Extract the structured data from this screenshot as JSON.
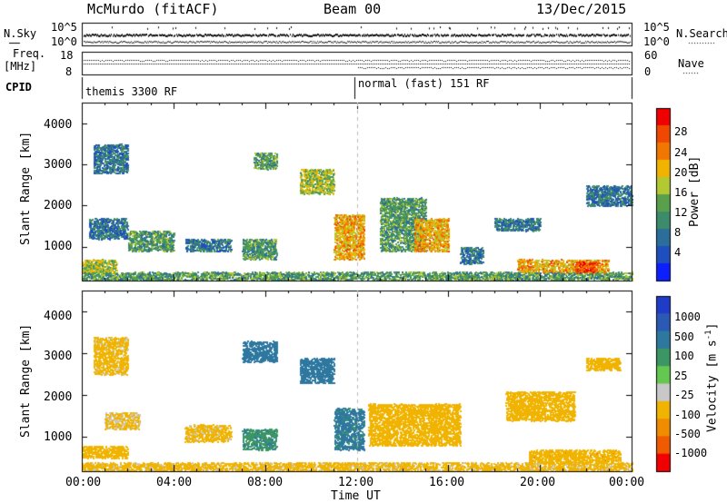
{
  "header": {
    "station": "McMurdo (fitACF)",
    "beam": "Beam 00",
    "date": "13/Dec/2015"
  },
  "status_panels": {
    "nsky_label": "N.Sky",
    "nsky_ticks": [
      "10^5",
      "10^0"
    ],
    "nsearch_label": "N.Search",
    "nsearch_ticks": [
      "10^5",
      "10^0"
    ],
    "freq_label": "Freq.",
    "freq_unit": "[MHz]",
    "freq_ticks": [
      "18",
      "8"
    ],
    "nave_label": "Nave",
    "nave_ticks": [
      "60",
      "0"
    ],
    "cpid_label": "CPID",
    "cpid_segments": [
      "themis 3300 RF",
      "normal (fast) 151 RF"
    ]
  },
  "colors": {
    "power_scale": [
      "#0b1fff",
      "#1f4fbf",
      "#2c6e9a",
      "#3c8c6c",
      "#5aa04c",
      "#b4c832",
      "#f0b400",
      "#f07800",
      "#f04800",
      "#f00000"
    ],
    "velocity_scale": [
      "#1f3cc8",
      "#2a5ab4",
      "#2e78a0",
      "#3c9664",
      "#64c850",
      "#c8c8c8",
      "#f0b400",
      "#f08c00",
      "#f05a00",
      "#f00000"
    ]
  },
  "chart_data": [
    {
      "type": "heatmap",
      "title": "Power",
      "xlabel": "Time UT",
      "ylabel": "Slant Range [km]",
      "x_ticks": [
        "00:00",
        "04:00",
        "08:00",
        "12:00",
        "16:00",
        "20:00",
        "00:00"
      ],
      "x_range_hours": [
        0,
        24
      ],
      "y_ticks": [
        "1000",
        "2000",
        "3000",
        "4000"
      ],
      "ylim": [
        180,
        4500
      ],
      "colorbar": {
        "label": "Power [dB]",
        "ticks": [
          "4",
          "8",
          "12",
          "16",
          "20",
          "24",
          "28"
        ],
        "range": [
          0,
          30
        ]
      },
      "echo_regions": [
        {
          "t_start": 0.0,
          "t_end": 24.0,
          "r_start": 200,
          "r_end": 400,
          "value": 12
        },
        {
          "t_start": 0.0,
          "t_end": 1.5,
          "r_start": 400,
          "r_end": 700,
          "value": 16
        },
        {
          "t_start": 0.3,
          "t_end": 2.0,
          "r_start": 1200,
          "r_end": 1700,
          "value": 8
        },
        {
          "t_start": 0.5,
          "t_end": 2.0,
          "r_start": 2800,
          "r_end": 3500,
          "value": 8
        },
        {
          "t_start": 2.0,
          "t_end": 4.0,
          "r_start": 900,
          "r_end": 1400,
          "value": 12
        },
        {
          "t_start": 4.5,
          "t_end": 6.5,
          "r_start": 900,
          "r_end": 1200,
          "value": 8
        },
        {
          "t_start": 7.0,
          "t_end": 8.5,
          "r_start": 700,
          "r_end": 1200,
          "value": 12
        },
        {
          "t_start": 7.5,
          "t_end": 8.5,
          "r_start": 2900,
          "r_end": 3300,
          "value": 12
        },
        {
          "t_start": 9.5,
          "t_end": 11.0,
          "r_start": 2300,
          "r_end": 2900,
          "value": 16
        },
        {
          "t_start": 11.0,
          "t_end": 12.3,
          "r_start": 700,
          "r_end": 1800,
          "value": 20
        },
        {
          "t_start": 13.0,
          "t_end": 15.0,
          "r_start": 900,
          "r_end": 2200,
          "value": 12
        },
        {
          "t_start": 14.5,
          "t_end": 16.0,
          "r_start": 900,
          "r_end": 1700,
          "value": 20
        },
        {
          "t_start": 16.5,
          "t_end": 17.5,
          "r_start": 600,
          "r_end": 1000,
          "value": 8
        },
        {
          "t_start": 18.0,
          "t_end": 20.0,
          "r_start": 1400,
          "r_end": 1700,
          "value": 8
        },
        {
          "t_start": 19.0,
          "t_end": 23.0,
          "r_start": 400,
          "r_end": 700,
          "value": 20
        },
        {
          "t_start": 21.5,
          "t_end": 22.5,
          "r_start": 400,
          "r_end": 650,
          "value": 26
        },
        {
          "t_start": 22.0,
          "t_end": 24.0,
          "r_start": 2000,
          "r_end": 2500,
          "value": 8
        }
      ]
    },
    {
      "type": "heatmap",
      "title": "Velocity",
      "xlabel": "Time UT",
      "ylabel": "Slant Range [km]",
      "x_ticks": [
        "00:00",
        "04:00",
        "08:00",
        "12:00",
        "16:00",
        "20:00",
        "00:00"
      ],
      "x_range_hours": [
        0,
        24
      ],
      "y_ticks": [
        "1000",
        "2000",
        "3000",
        "4000"
      ],
      "ylim": [
        180,
        4500
      ],
      "colorbar": {
        "label": "Velocity [m s^-1]",
        "ticks": [
          "1000",
          "500",
          "100",
          "25",
          "-25",
          "-100",
          "-500",
          "-1000"
        ]
      },
      "echo_regions": [
        {
          "t_start": 0.0,
          "t_end": 24.0,
          "r_start": 200,
          "r_end": 400,
          "value": -150
        },
        {
          "t_start": 0.0,
          "t_end": 2.0,
          "r_start": 500,
          "r_end": 800,
          "value": -200
        },
        {
          "t_start": 0.5,
          "t_end": 2.0,
          "r_start": 2500,
          "r_end": 3400,
          "value": -150
        },
        {
          "t_start": 1.0,
          "t_end": 2.5,
          "r_start": 1200,
          "r_end": 1600,
          "value": -120
        },
        {
          "t_start": 4.5,
          "t_end": 6.5,
          "r_start": 900,
          "r_end": 1300,
          "value": -150
        },
        {
          "t_start": 7.0,
          "t_end": 8.5,
          "r_start": 700,
          "r_end": 1200,
          "value": 80
        },
        {
          "t_start": 7.0,
          "t_end": 8.5,
          "r_start": 2800,
          "r_end": 3300,
          "value": 200
        },
        {
          "t_start": 9.5,
          "t_end": 11.0,
          "r_start": 2300,
          "r_end": 2900,
          "value": 300
        },
        {
          "t_start": 11.0,
          "t_end": 12.3,
          "r_start": 700,
          "r_end": 1700,
          "value": 150
        },
        {
          "t_start": 12.5,
          "t_end": 16.5,
          "r_start": 800,
          "r_end": 1800,
          "value": -300
        },
        {
          "t_start": 18.5,
          "t_end": 21.5,
          "r_start": 1400,
          "r_end": 2100,
          "value": -250
        },
        {
          "t_start": 19.5,
          "t_end": 23.5,
          "r_start": 400,
          "r_end": 700,
          "value": -350
        },
        {
          "t_start": 22.0,
          "t_end": 23.5,
          "r_start": 2600,
          "r_end": 2900,
          "value": -200
        }
      ]
    }
  ],
  "axis_labels": {
    "time": "Time UT",
    "slant_range": "Slant Range [km]",
    "power": "Power [dB]",
    "velocity": "Velocity [m s"
  },
  "superscript": "-1"
}
